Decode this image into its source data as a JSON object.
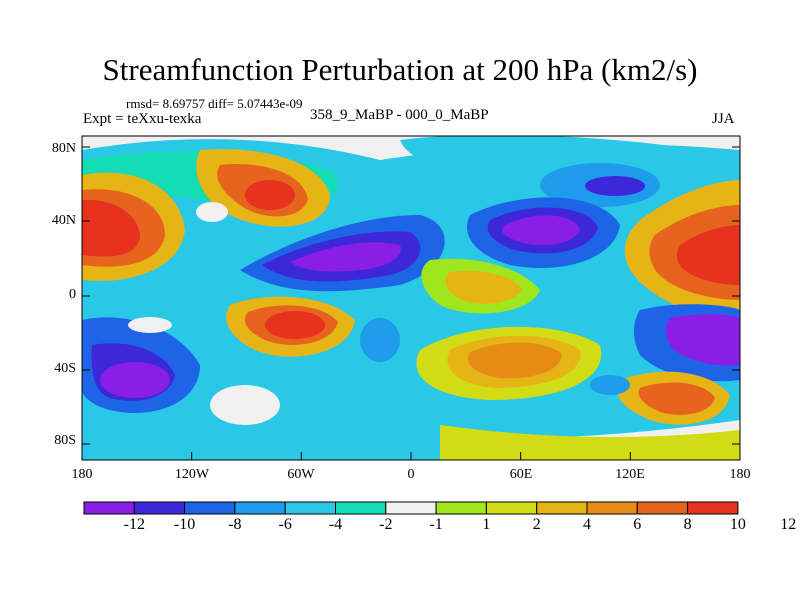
{
  "title": "Streamfunction Perturbation at 200 hPa (km2/s)",
  "stats": "rmsd= 8.69757 diff= 5.07443e-09",
  "experiment": "Expt = teXxu-texka",
  "period": "358_9_MaBP - 000_0_MaBP",
  "season": "JJA",
  "map": {
    "lat_ticks": [
      "80N",
      "40N",
      "0",
      "40S",
      "80S"
    ],
    "lon_ticks": [
      "180",
      "120W",
      "60W",
      "0",
      "60E",
      "120E",
      "180"
    ]
  },
  "colorbar": {
    "labels": [
      "-12",
      "-10",
      "-8",
      "-6",
      "-4",
      "-2",
      "-1",
      "1",
      "2",
      "4",
      "6",
      "8",
      "10",
      "12"
    ],
    "colors": [
      "#8a1ee6",
      "#3c28d8",
      "#1e64e6",
      "#1e9bea",
      "#28c8e6",
      "#14dcb4",
      "#f0f0f0",
      "#a0e61e",
      "#d2dc14",
      "#e6b414",
      "#e68c14",
      "#e6641e",
      "#e6321e"
    ]
  }
}
